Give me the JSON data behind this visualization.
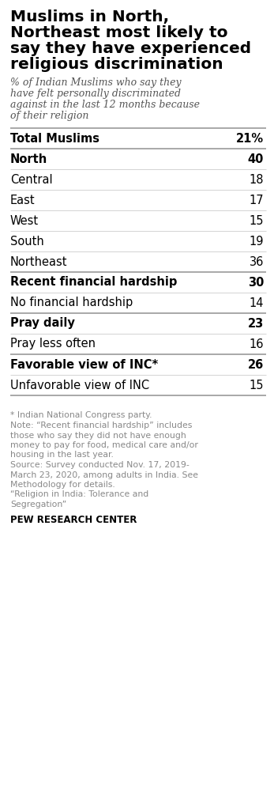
{
  "title_lines": [
    "Muslims in North,",
    "Northeast most likely to",
    "say they have experienced",
    "religious discrimination"
  ],
  "subtitle_lines": [
    "% of Indian Muslims who say they",
    "have felt personally discriminated",
    "against in the last 12 months because",
    "of their religion"
  ],
  "rows": [
    {
      "label": "Total Muslims",
      "value": "21%",
      "bold": true,
      "thick_top": true,
      "group_sep": false
    },
    {
      "label": "North",
      "value": "40",
      "bold": true,
      "thick_top": true,
      "group_sep": true
    },
    {
      "label": "Central",
      "value": "18",
      "bold": false,
      "thick_top": false,
      "group_sep": false
    },
    {
      "label": "East",
      "value": "17",
      "bold": false,
      "thick_top": false,
      "group_sep": false
    },
    {
      "label": "West",
      "value": "15",
      "bold": false,
      "thick_top": false,
      "group_sep": false
    },
    {
      "label": "South",
      "value": "19",
      "bold": false,
      "thick_top": false,
      "group_sep": false
    },
    {
      "label": "Northeast",
      "value": "36",
      "bold": false,
      "thick_top": false,
      "group_sep": false
    },
    {
      "label": "Recent financial hardship",
      "value": "30",
      "bold": true,
      "thick_top": true,
      "group_sep": true
    },
    {
      "label": "No financial hardship",
      "value": "14",
      "bold": false,
      "thick_top": false,
      "group_sep": false
    },
    {
      "label": "Pray daily",
      "value": "23",
      "bold": true,
      "thick_top": true,
      "group_sep": true
    },
    {
      "label": "Pray less often",
      "value": "16",
      "bold": false,
      "thick_top": false,
      "group_sep": false
    },
    {
      "label": "Favorable view of INC*",
      "value": "26",
      "bold": true,
      "thick_top": true,
      "group_sep": true
    },
    {
      "label": "Unfavorable view of INC",
      "value": "15",
      "bold": false,
      "thick_top": false,
      "group_sep": false
    }
  ],
  "footnote_lines": [
    "* Indian National Congress party.",
    "Note: “Recent financial hardship” includes",
    "those who say they did not have enough",
    "money to pay for food, medical care and/or",
    "housing in the last year.",
    "Source: Survey conducted Nov. 17, 2019-",
    "March 23, 2020, among adults in India. See",
    "Methodology for details.",
    "“Religion in India: Tolerance and",
    "Segregation”"
  ],
  "source_label": "PEW RESEARCH CENTER",
  "bg_color": "#ffffff",
  "text_color": "#000000",
  "subtitle_color": "#555555",
  "footnote_color": "#888888",
  "thick_line_color": "#999999",
  "thin_line_color": "#cccccc",
  "title_fontsize": 14.5,
  "subtitle_fontsize": 9.0,
  "row_fontsize": 10.5,
  "footnote_fontsize": 7.8,
  "source_fontsize": 8.5
}
